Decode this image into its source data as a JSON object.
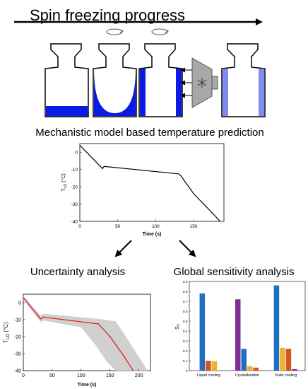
{
  "header": {
    "title": "Spin freezing progress",
    "model_caption": "Mechanistic model based temperature prediction",
    "uncertainty_caption": "Uncertainty analysis",
    "sensitivity_caption": "Global sensitivity analysis"
  },
  "colors": {
    "liquid_blue": "#0b1be6",
    "frozen_light_blue": "#7f8cf0",
    "liquid_cooling_blue": "#1f6fbf",
    "purple": "#7e3192",
    "orange_red": "#d6541f",
    "yellow": "#efb12c",
    "uncertainty_band": "#d0d0d0",
    "median_line": "#e02020"
  },
  "icons": {
    "rotation": "rotation-arrow-icon",
    "cooler": "snowflake-cooler-icon"
  },
  "chart_data": [
    {
      "type": "line",
      "title": "",
      "xlabel": "Time (s)",
      "ylabel": "T",
      "ylabel_sub": "LO",
      "ylabel_unit": "(°C)",
      "xlim": [
        0,
        190
      ],
      "ylim": [
        -40,
        5
      ],
      "x_ticks": [
        0,
        50,
        100,
        150
      ],
      "y_ticks": [
        0,
        -10,
        -20,
        -30,
        -40
      ],
      "series": [
        {
          "x": [
            0,
            30,
            32,
            130,
            133,
            150,
            170,
            185
          ],
          "y": [
            4,
            -9.5,
            -8.2,
            -12.5,
            -13.5,
            -24,
            -33,
            -40
          ]
        }
      ]
    },
    {
      "type": "area",
      "title": "",
      "xlabel": "Time (s)",
      "ylabel": "T",
      "ylabel_sub": "LO",
      "ylabel_unit": "(°C)",
      "xlim": [
        0,
        220
      ],
      "ylim": [
        -40,
        5
      ],
      "x_ticks": [
        0,
        50,
        100,
        150,
        200
      ],
      "y_ticks": [
        0,
        -10,
        -20,
        -30,
        -40
      ],
      "median": {
        "x": [
          0,
          30,
          35,
          130,
          150,
          175,
          190
        ],
        "y": [
          3,
          -9.5,
          -8.5,
          -12.5,
          -20,
          -32,
          -40
        ]
      },
      "band_upper": {
        "x": [
          0,
          30,
          35,
          130,
          160,
          185,
          215
        ],
        "y": [
          4,
          -7.5,
          -6.5,
          -9.5,
          -11,
          -24,
          -40
        ]
      },
      "band_lower": {
        "x": [
          0,
          30,
          35,
          100,
          125,
          145,
          160
        ],
        "y": [
          2,
          -11.5,
          -10.5,
          -14.5,
          -25,
          -35,
          -40
        ]
      }
    },
    {
      "type": "bar",
      "title": "",
      "xlabel": "",
      "ylabel": "S",
      "ylabel_sub": "T",
      "ylim": [
        0,
        0.9
      ],
      "y_ticks": [
        0,
        0.1,
        0.2,
        0.3,
        0.4,
        0.5,
        0.6,
        0.7,
        0.8,
        0.9
      ],
      "categories": [
        "Liquid cooling",
        "Crystallization",
        "Solid cooling"
      ],
      "groups": [
        {
          "bars": [
            {
              "value": 0.78,
              "color": "#1f6fbf"
            },
            {
              "value": 0.1,
              "color": "#d6541f"
            },
            {
              "value": 0.095,
              "color": "#efb12c"
            }
          ]
        },
        {
          "bars": [
            {
              "value": 0.72,
              "color": "#7e3192"
            },
            {
              "value": 0.22,
              "color": "#1f6fbf"
            },
            {
              "value": 0.045,
              "color": "#efb12c"
            },
            {
              "value": 0.03,
              "color": "#d6541f"
            }
          ]
        },
        {
          "bars": [
            {
              "value": 0.86,
              "color": "#1f6fbf"
            },
            {
              "value": 0.23,
              "color": "#efb12c"
            },
            {
              "value": 0.22,
              "color": "#d6541f"
            },
            {
              "value": 0.015,
              "color": "#7e3192"
            }
          ]
        }
      ]
    }
  ]
}
